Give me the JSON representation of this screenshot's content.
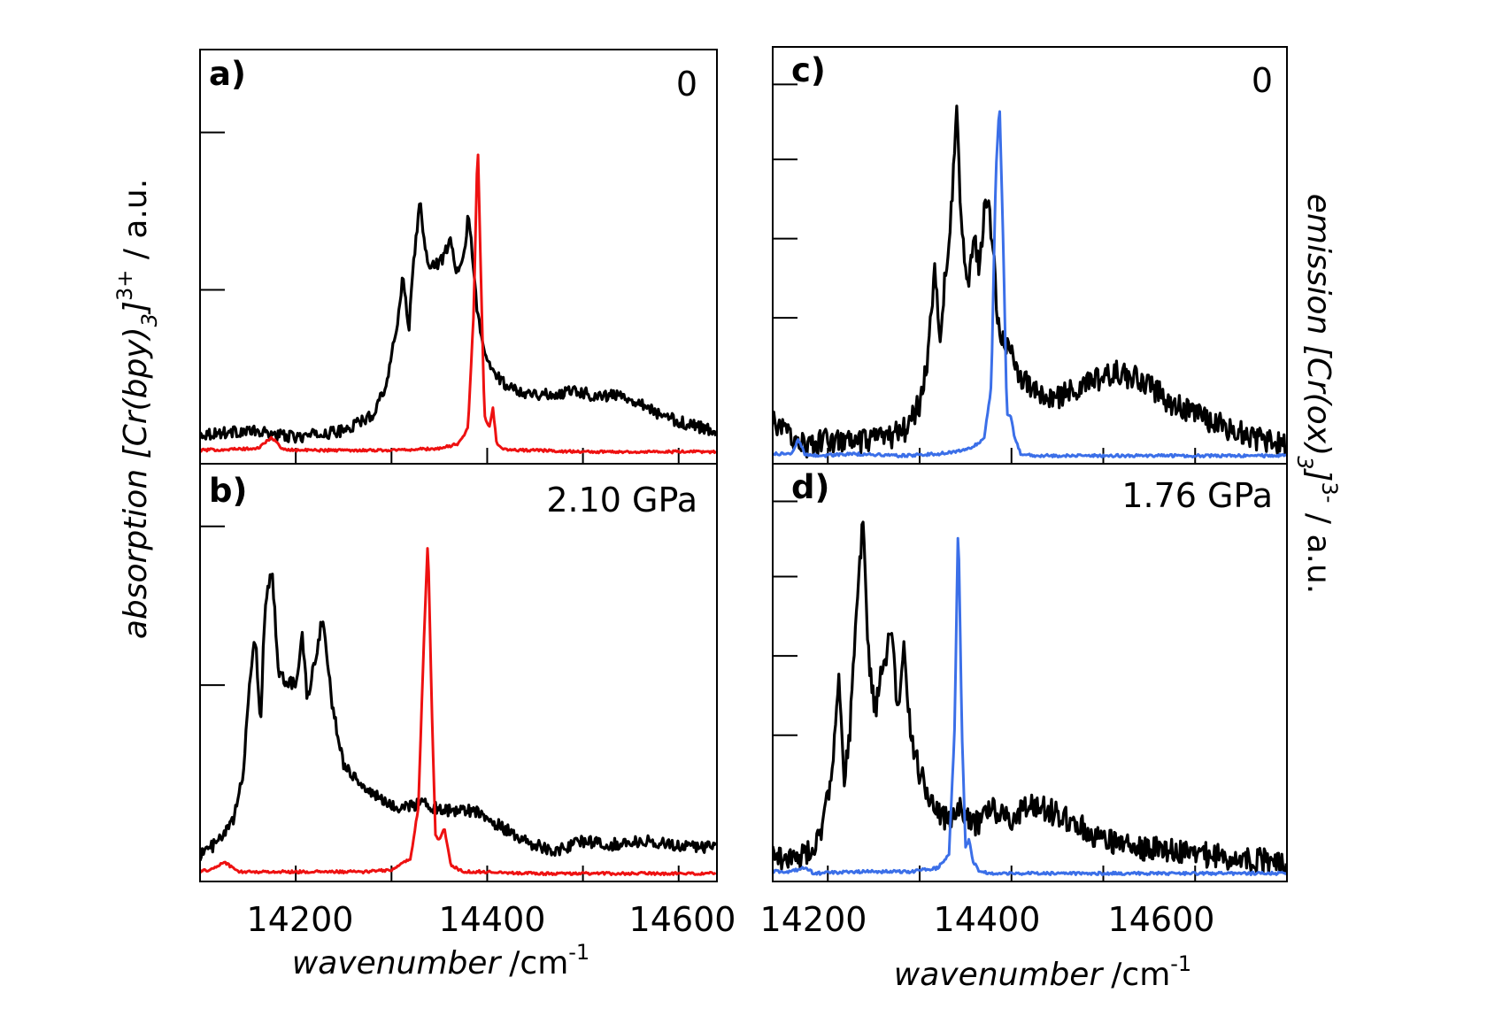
{
  "colors": {
    "absorption": "#000000",
    "emission_ab": "#ee1111",
    "emission_cd": "#3b6fe8",
    "frame": "#000000"
  },
  "chart_data": [
    {
      "panel": "a",
      "type": "line",
      "label": "a)",
      "pressure": "0",
      "xlim": [
        14100,
        14640
      ],
      "ylim": [
        0,
        1
      ],
      "xticks": [
        14200,
        14300,
        14400,
        14500,
        14600
      ],
      "series": [
        {
          "name": "absorption [Cr(bpy)3]3+",
          "color": "#000000",
          "x": [
            14100,
            14150,
            14200,
            14250,
            14280,
            14295,
            14305,
            14312,
            14318,
            14323,
            14330,
            14335,
            14343,
            14352,
            14362,
            14368,
            14375,
            14380,
            14384,
            14390,
            14396,
            14405,
            14420,
            14440,
            14470,
            14490,
            14510,
            14540,
            14560,
            14580,
            14610,
            14640
          ],
          "y": [
            0.06,
            0.07,
            0.05,
            0.07,
            0.12,
            0.22,
            0.38,
            0.56,
            0.38,
            0.6,
            0.79,
            0.62,
            0.58,
            0.6,
            0.66,
            0.56,
            0.6,
            0.74,
            0.64,
            0.43,
            0.32,
            0.26,
            0.21,
            0.19,
            0.18,
            0.2,
            0.18,
            0.18,
            0.16,
            0.12,
            0.09,
            0.07
          ]
        },
        {
          "name": "emission [Cr(ox)3]3-",
          "color": "#ee1111",
          "x": [
            14100,
            14160,
            14175,
            14185,
            14200,
            14250,
            14300,
            14350,
            14370,
            14380,
            14386,
            14390,
            14393,
            14397,
            14402,
            14406,
            14410,
            14420,
            14450,
            14500,
            14550,
            14600,
            14640
          ],
          "y": [
            0.01,
            0.015,
            0.05,
            0.015,
            0.01,
            0.01,
            0.01,
            0.015,
            0.03,
            0.08,
            0.45,
            0.98,
            0.6,
            0.12,
            0.08,
            0.14,
            0.03,
            0.01,
            0.01,
            0.005,
            0.005,
            0.005,
            0.005
          ]
        }
      ]
    },
    {
      "panel": "b",
      "type": "line",
      "label": "b)",
      "pressure": "2.10 GPa",
      "xlim": [
        14100,
        14640
      ],
      "ylim": [
        0,
        1
      ],
      "xticks": [
        14200,
        14300,
        14400,
        14500,
        14600
      ],
      "xtick_labels": [
        "14200",
        "14400",
        "14600"
      ],
      "xlabel": "wavenumber",
      "xlabel_unit": "/cm",
      "xlabel_exp": "-1",
      "series": [
        {
          "name": "absorption [Cr(bpy)3]3+",
          "color": "#000000",
          "x": [
            14100,
            14120,
            14135,
            14145,
            14152,
            14158,
            14163,
            14168,
            14175,
            14182,
            14190,
            14200,
            14207,
            14212,
            14218,
            14228,
            14238,
            14250,
            14270,
            14300,
            14330,
            14360,
            14390,
            14410,
            14440,
            14470,
            14500,
            14530,
            14560,
            14600,
            14640
          ],
          "y": [
            0.06,
            0.1,
            0.16,
            0.3,
            0.58,
            0.7,
            0.44,
            0.8,
            0.9,
            0.6,
            0.56,
            0.57,
            0.7,
            0.52,
            0.6,
            0.76,
            0.5,
            0.33,
            0.26,
            0.2,
            0.21,
            0.19,
            0.19,
            0.15,
            0.1,
            0.07,
            0.1,
            0.09,
            0.1,
            0.09,
            0.08
          ]
        },
        {
          "name": "emission [Cr(ox)3]3-",
          "color": "#ee1111",
          "x": [
            14100,
            14115,
            14125,
            14140,
            14180,
            14220,
            14270,
            14300,
            14320,
            14328,
            14334,
            14338,
            14342,
            14346,
            14350,
            14355,
            14362,
            14375,
            14400,
            14450,
            14500,
            14550,
            14600,
            14640
          ],
          "y": [
            0.01,
            0.02,
            0.04,
            0.01,
            0.01,
            0.01,
            0.01,
            0.015,
            0.05,
            0.2,
            0.7,
            0.99,
            0.5,
            0.12,
            0.1,
            0.14,
            0.03,
            0.01,
            0.01,
            0.005,
            0.005,
            0.005,
            0.005,
            0.005
          ]
        }
      ]
    },
    {
      "panel": "c",
      "type": "line",
      "label": "c)",
      "pressure": "0",
      "xlim": [
        14140,
        14700
      ],
      "ylim": [
        0,
        1
      ],
      "xticks": [
        14200,
        14300,
        14400,
        14500,
        14600,
        14700
      ],
      "series": [
        {
          "name": "emission [Cr(ox)3]3-",
          "color": "#000000",
          "x": [
            14140,
            14160,
            14180,
            14200,
            14230,
            14260,
            14285,
            14300,
            14310,
            14316,
            14322,
            14328,
            14333,
            14340,
            14345,
            14352,
            14360,
            14365,
            14372,
            14378,
            14385,
            14390,
            14398,
            14405,
            14420,
            14440,
            14460,
            14480,
            14510,
            14540,
            14570,
            14600,
            14640,
            14670,
            14700
          ],
          "y": [
            0.1,
            0.06,
            0.03,
            0.05,
            0.04,
            0.05,
            0.08,
            0.15,
            0.3,
            0.54,
            0.32,
            0.52,
            0.62,
            0.98,
            0.68,
            0.48,
            0.6,
            0.54,
            0.74,
            0.64,
            0.4,
            0.34,
            0.3,
            0.24,
            0.2,
            0.16,
            0.18,
            0.2,
            0.24,
            0.22,
            0.16,
            0.12,
            0.08,
            0.05,
            0.03
          ]
        },
        {
          "name": "absorption [Cr(bpy)3]3+",
          "color": "#3b6fe8",
          "x": [
            14140,
            14160,
            14168,
            14175,
            14190,
            14230,
            14280,
            14320,
            14350,
            14370,
            14378,
            14383,
            14387,
            14391,
            14395,
            14399,
            14403,
            14410,
            14430,
            14500,
            14600,
            14700
          ],
          "y": [
            0.01,
            0.01,
            0.05,
            0.01,
            0.005,
            0.01,
            0.005,
            0.01,
            0.02,
            0.05,
            0.2,
            0.8,
            0.99,
            0.6,
            0.12,
            0.12,
            0.06,
            0.01,
            0.005,
            0.005,
            0.005,
            0.005
          ]
        }
      ]
    },
    {
      "panel": "d",
      "type": "line",
      "label": "d)",
      "pressure": "1.76 GPa",
      "xlim": [
        14140,
        14700
      ],
      "ylim": [
        0,
        1
      ],
      "xticks": [
        14200,
        14300,
        14400,
        14500,
        14600,
        14700
      ],
      "xtick_labels": [
        "14200",
        "14400",
        "14600"
      ],
      "xlabel": "wavenumber",
      "xlabel_unit": "/cm",
      "xlabel_exp": "-1",
      "series": [
        {
          "name": "emission [Cr(ox)3]3-",
          "color": "#000000",
          "x": [
            14140,
            14160,
            14180,
            14195,
            14205,
            14212,
            14218,
            14224,
            14230,
            14238,
            14245,
            14252,
            14258,
            14264,
            14270,
            14276,
            14282,
            14290,
            14300,
            14315,
            14330,
            14345,
            14360,
            14380,
            14400,
            14420,
            14440,
            14470,
            14500,
            14530,
            14570,
            14600,
            14640,
            14670,
            14700
          ],
          "y": [
            0.06,
            0.04,
            0.06,
            0.14,
            0.3,
            0.58,
            0.25,
            0.4,
            0.66,
            0.98,
            0.58,
            0.45,
            0.55,
            0.62,
            0.68,
            0.42,
            0.64,
            0.4,
            0.28,
            0.2,
            0.15,
            0.18,
            0.14,
            0.18,
            0.16,
            0.2,
            0.18,
            0.14,
            0.1,
            0.08,
            0.07,
            0.06,
            0.05,
            0.04,
            0.04
          ]
        },
        {
          "name": "absorption [Cr(bpy)3]3+",
          "color": "#3b6fe8",
          "x": [
            14140,
            14160,
            14175,
            14185,
            14230,
            14290,
            14320,
            14332,
            14338,
            14342,
            14346,
            14350,
            14354,
            14358,
            14365,
            14380,
            14420,
            14500,
            14600,
            14700
          ],
          "y": [
            0.01,
            0.01,
            0.02,
            0.005,
            0.01,
            0.01,
            0.02,
            0.06,
            0.4,
            0.99,
            0.4,
            0.08,
            0.1,
            0.04,
            0.01,
            0.005,
            0.005,
            0.005,
            0.005,
            0.005
          ]
        }
      ]
    }
  ],
  "left_ylabel": {
    "prefix": "absorption [",
    "formula": "Cr(bpy)",
    "subscript": "3",
    "close": "]",
    "superscript": "3+",
    "suffix": " / a.u."
  },
  "right_ylabel": {
    "prefix": "emission [",
    "formula": "Cr(ox)",
    "subscript": "3",
    "close": "]",
    "superscript": "3-",
    "suffix": " / a.u."
  }
}
